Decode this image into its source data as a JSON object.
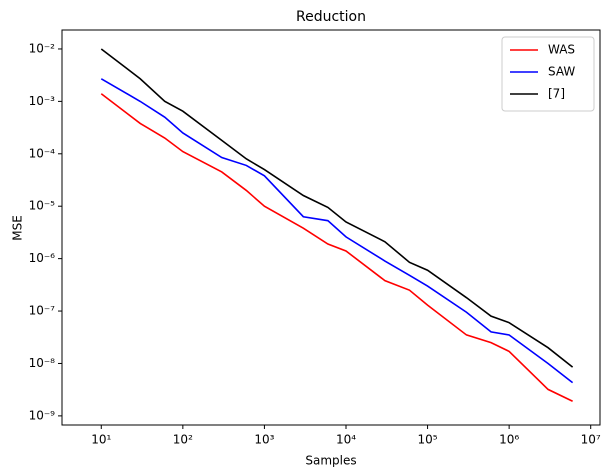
{
  "chart_data": {
    "type": "line",
    "title": "Reduction",
    "xlabel": "Samples",
    "ylabel": "MSE",
    "xscale": "log",
    "yscale": "log",
    "legend": "upper right",
    "x": [
      10,
      30,
      60,
      100,
      300,
      600,
      1000,
      3000,
      6000,
      10000,
      30000,
      60000,
      100000,
      300000,
      600000,
      1000000,
      3000000,
      6000000
    ],
    "series": [
      {
        "name": "WAS",
        "color": "#ff0000",
        "values": [
          0.0014,
          0.00038,
          0.0002,
          0.00011,
          4.5e-05,
          2e-05,
          1e-05,
          3.8e-06,
          1.9e-06,
          1.4e-06,
          3.8e-07,
          2.5e-07,
          1.3e-07,
          3.5e-08,
          2.5e-08,
          1.7e-08,
          3.2e-09,
          1.9e-09
        ]
      },
      {
        "name": "SAW",
        "color": "#0000ff",
        "values": [
          0.0027,
          0.001,
          0.0005,
          0.00025,
          8.5e-05,
          6e-05,
          3.8e-05,
          6.3e-06,
          5.3e-06,
          2.6e-06,
          9e-07,
          4.8e-07,
          3e-07,
          9.5e-08,
          4e-08,
          3.5e-08,
          1e-08,
          4.3e-09
        ]
      },
      {
        "name": "[7]",
        "color": "#000000",
        "values": [
          0.01,
          0.0027,
          0.001,
          0.00065,
          0.00018,
          8e-05,
          5e-05,
          1.6e-05,
          9.5e-06,
          5e-06,
          2.1e-06,
          8.5e-07,
          6e-07,
          1.8e-07,
          8e-08,
          6e-08,
          2e-08,
          8.5e-09
        ]
      }
    ],
    "xlim": [
      3.3,
      13000000
    ],
    "ylim": [
      6.7e-10,
      0.023
    ],
    "xticks": [
      {
        "value": 10,
        "label": "10¹"
      },
      {
        "value": 100,
        "label": "10²"
      },
      {
        "value": 1000,
        "label": "10³"
      },
      {
        "value": 10000,
        "label": "10⁴"
      },
      {
        "value": 100000,
        "label": "10⁵"
      },
      {
        "value": 1000000,
        "label": "10⁶"
      },
      {
        "value": 10000000,
        "label": "10⁷"
      }
    ],
    "yticks": [
      {
        "value": 1e-09,
        "label": "10⁻⁹"
      },
      {
        "value": 1e-08,
        "label": "10⁻⁸"
      },
      {
        "value": 1e-07,
        "label": "10⁻⁷"
      },
      {
        "value": 1e-06,
        "label": "10⁻⁶"
      },
      {
        "value": 1e-05,
        "label": "10⁻⁵"
      },
      {
        "value": 0.0001,
        "label": "10⁻⁴"
      },
      {
        "value": 0.001,
        "label": "10⁻³"
      },
      {
        "value": 0.01,
        "label": "10⁻²"
      }
    ]
  }
}
